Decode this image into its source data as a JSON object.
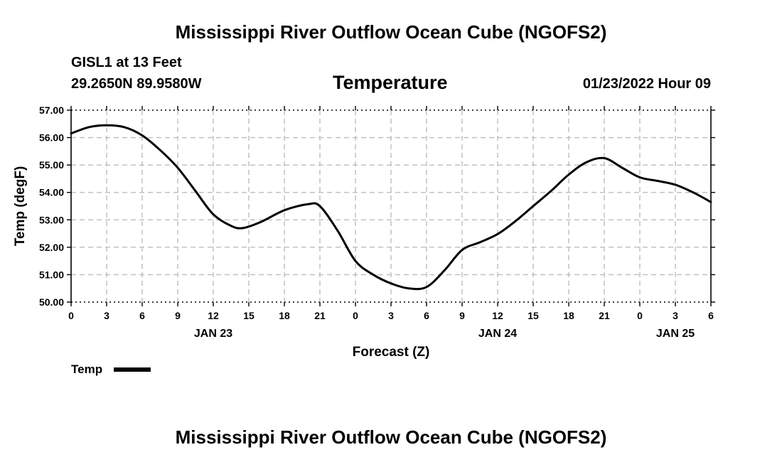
{
  "page": {
    "title_top": "Mississippi River Outflow Ocean Cube (NGOFS2)",
    "title_bottom": "Mississippi River Outflow Ocean Cube (NGOFS2)",
    "station": "GISL1 at 13 Feet",
    "location": "29.2650N  89.9580W",
    "variable": "Temperature",
    "timestamp": "01/23/2022 Hour 09"
  },
  "legend": {
    "label": "Temp",
    "color": "#000000"
  },
  "chart_data": {
    "type": "line",
    "title": "Temperature",
    "xlabel": "Forecast (Z)",
    "ylabel": "Temp (degF)",
    "xlim": [
      0,
      54
    ],
    "ylim": [
      50,
      57
    ],
    "x_unit": "hours since 2022-01-23 00Z",
    "grid": true,
    "x_ticks": [
      0,
      3,
      6,
      9,
      12,
      15,
      18,
      21,
      24,
      27,
      30,
      33,
      36,
      39,
      42,
      45,
      48,
      51,
      54
    ],
    "x_tick_labels": [
      "0",
      "3",
      "6",
      "9",
      "12",
      "15",
      "18",
      "21",
      "0",
      "3",
      "6",
      "9",
      "12",
      "15",
      "18",
      "21",
      "0",
      "3",
      "6"
    ],
    "y_ticks": [
      50,
      51,
      52,
      53,
      54,
      55,
      56,
      57
    ],
    "y_tick_labels": [
      "50.00",
      "51.00",
      "52.00",
      "53.00",
      "54.00",
      "55.00",
      "56.00",
      "57.00"
    ],
    "date_labels": [
      {
        "x": 12,
        "label": "JAN 23"
      },
      {
        "x": 36,
        "label": "JAN 24"
      },
      {
        "x": 51,
        "label": "JAN 25"
      }
    ],
    "series": [
      {
        "name": "Temp",
        "color": "#000000",
        "x": [
          0,
          1.5,
          3,
          4.5,
          6,
          7.5,
          9,
          10.5,
          12,
          13.5,
          14.5,
          16,
          18,
          20,
          21,
          22.5,
          24,
          25.5,
          27,
          28.5,
          30,
          31.5,
          33,
          34.5,
          36,
          37.5,
          39,
          40.5,
          42,
          43.5,
          45,
          46.5,
          48,
          49.5,
          51,
          52.5,
          54
        ],
        "values": [
          56.15,
          56.38,
          56.45,
          56.38,
          56.08,
          55.55,
          54.9,
          54.05,
          53.2,
          52.78,
          52.7,
          52.92,
          53.35,
          53.57,
          53.5,
          52.6,
          51.5,
          51.0,
          50.68,
          50.5,
          50.55,
          51.15,
          51.9,
          52.18,
          52.48,
          52.95,
          53.5,
          54.05,
          54.65,
          55.1,
          55.25,
          54.9,
          54.55,
          54.42,
          54.28,
          54.0,
          53.65
        ]
      }
    ]
  }
}
